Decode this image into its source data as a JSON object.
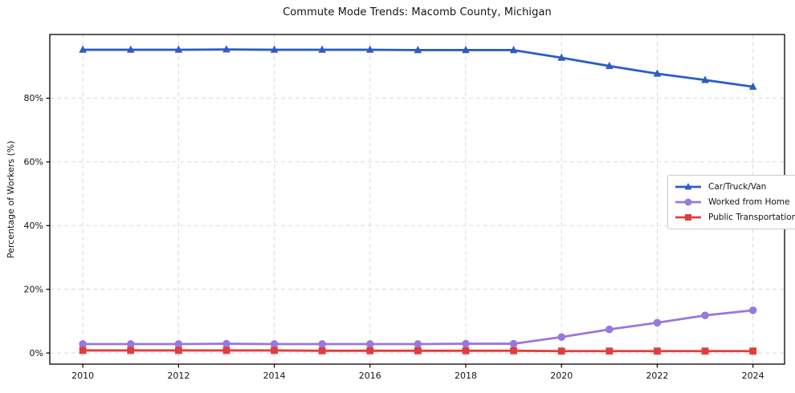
{
  "figure": {
    "background": "#ffffff"
  },
  "chart_data": {
    "type": "line",
    "title": "Commute Mode Trends: Macomb County, Michigan",
    "xlabel": "",
    "ylabel": "Percentage of Workers (%)",
    "x": [
      2010,
      2011,
      2012,
      2013,
      2014,
      2015,
      2016,
      2017,
      2018,
      2019,
      2020,
      2021,
      2022,
      2023,
      2024
    ],
    "series": [
      {
        "name": "Car/Truck/Van",
        "marker": "triangle",
        "color": "#2a5ec6",
        "values": [
          95.2,
          95.2,
          95.2,
          95.3,
          95.2,
          95.2,
          95.2,
          95.1,
          95.1,
          95.1,
          92.7,
          90.1,
          87.7,
          85.7,
          83.6
        ]
      },
      {
        "name": "Worked from Home",
        "marker": "circle",
        "color": "#9877df",
        "values": [
          2.8,
          2.8,
          2.8,
          2.9,
          2.8,
          2.8,
          2.8,
          2.8,
          2.9,
          2.9,
          5.0,
          7.4,
          9.5,
          11.8,
          13.4
        ]
      },
      {
        "name": "Public Transportation",
        "marker": "square",
        "color": "#e23d3d",
        "values": [
          0.8,
          0.8,
          0.8,
          0.8,
          0.8,
          0.7,
          0.7,
          0.7,
          0.7,
          0.7,
          0.6,
          0.6,
          0.6,
          0.6,
          0.6
        ]
      }
    ],
    "x_ticks": [
      2010,
      2012,
      2014,
      2016,
      2018,
      2020,
      2022,
      2024
    ],
    "x_tick_labels": [
      "2010",
      "2012",
      "2014",
      "2016",
      "2018",
      "2020",
      "2022",
      "2024"
    ],
    "y_ticks": [
      0,
      20,
      40,
      60,
      80
    ],
    "y_tick_labels": [
      "0%",
      "20%",
      "40%",
      "60%",
      "80%"
    ],
    "xlim": [
      2009.31,
      2024.66
    ],
    "ylim": [
      -3.5,
      100
    ],
    "grid": true,
    "grid_color": "#d9d9d9",
    "grid_style": "dashed",
    "axis_color": "#000000",
    "text_color": "#141414",
    "legend_position": "center-right"
  }
}
